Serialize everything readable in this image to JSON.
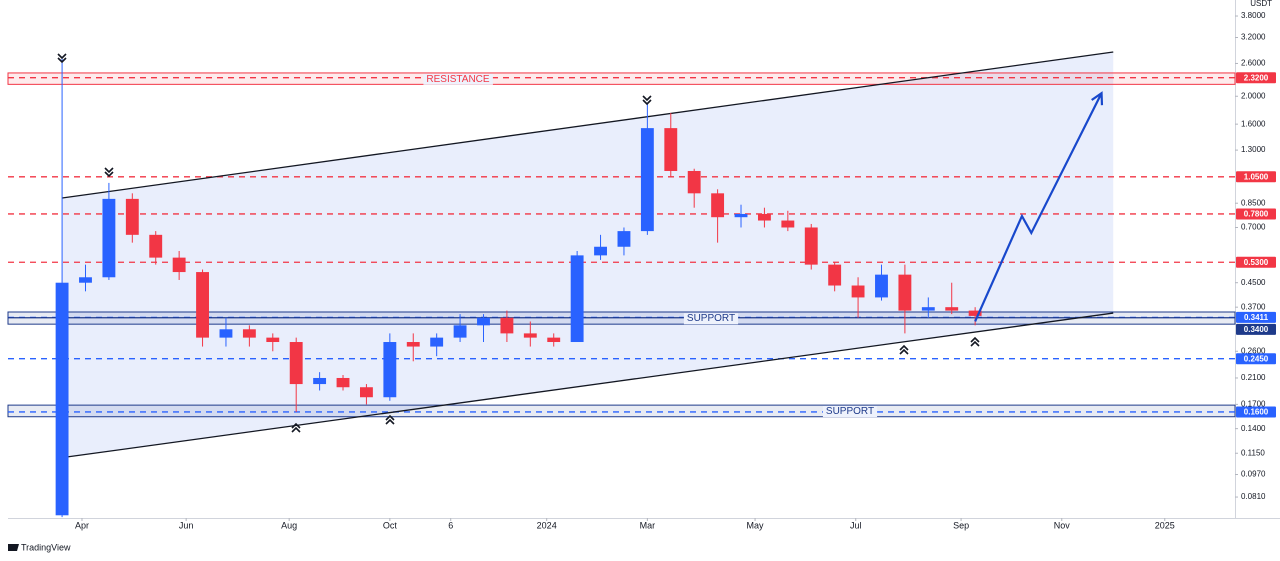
{
  "chart_data": {
    "type": "candlestick",
    "y_unit": "USDT",
    "branding": "TradingView",
    "log_scale": true,
    "up_color": "#2962ff",
    "down_color": "#f23645",
    "x": [
      0,
      1,
      2,
      3,
      4,
      5,
      6,
      7,
      8,
      9,
      10,
      11,
      12,
      13,
      14,
      15,
      16,
      17,
      18,
      19,
      20,
      21,
      22,
      23,
      24,
      25,
      26,
      27,
      28,
      29,
      30,
      31,
      32,
      33,
      34,
      35,
      36,
      37,
      38,
      39
    ],
    "open": [
      0.07,
      0.45,
      0.47,
      0.88,
      0.66,
      0.55,
      0.49,
      0.29,
      0.31,
      0.29,
      0.28,
      0.2,
      0.21,
      0.195,
      0.18,
      0.28,
      0.27,
      0.29,
      0.32,
      0.34,
      0.3,
      0.29,
      0.28,
      0.56,
      0.6,
      0.68,
      1.55,
      1.1,
      0.92,
      0.76,
      0.78,
      0.74,
      0.7,
      0.52,
      0.44,
      0.4,
      0.48,
      0.36,
      0.37,
      0.36
    ],
    "high": [
      2.7,
      0.52,
      1.0,
      0.92,
      0.68,
      0.58,
      0.5,
      0.34,
      0.32,
      0.3,
      0.29,
      0.22,
      0.215,
      0.2,
      0.3,
      0.3,
      0.3,
      0.35,
      0.35,
      0.36,
      0.33,
      0.3,
      0.58,
      0.66,
      0.7,
      1.9,
      1.75,
      1.12,
      0.95,
      0.84,
      0.82,
      0.8,
      0.72,
      0.53,
      0.47,
      0.52,
      0.52,
      0.4,
      0.45,
      0.37
    ],
    "low": [
      0.069,
      0.42,
      0.46,
      0.62,
      0.52,
      0.46,
      0.27,
      0.27,
      0.27,
      0.26,
      0.16,
      0.19,
      0.19,
      0.17,
      0.175,
      0.24,
      0.25,
      0.28,
      0.28,
      0.28,
      0.27,
      0.27,
      0.28,
      0.54,
      0.56,
      0.66,
      1.05,
      0.82,
      0.62,
      0.7,
      0.7,
      0.68,
      0.5,
      0.42,
      0.34,
      0.39,
      0.3,
      0.34,
      0.35,
      0.32
    ],
    "close": [
      0.45,
      0.47,
      0.88,
      0.66,
      0.55,
      0.49,
      0.29,
      0.31,
      0.29,
      0.28,
      0.2,
      0.21,
      0.195,
      0.18,
      0.28,
      0.27,
      0.29,
      0.32,
      0.34,
      0.3,
      0.29,
      0.28,
      0.56,
      0.6,
      0.68,
      1.55,
      1.1,
      0.92,
      0.76,
      0.78,
      0.74,
      0.7,
      0.52,
      0.44,
      0.4,
      0.48,
      0.36,
      0.37,
      0.36,
      0.345
    ],
    "xlim": [
      -2.31,
      50.1
    ],
    "xticks": [
      {
        "value": 0.85,
        "label": "Apr"
      },
      {
        "value": 5.3,
        "label": "Jun"
      },
      {
        "value": 9.7,
        "label": "Aug"
      },
      {
        "value": 14.0,
        "label": "Oct"
      },
      {
        "value": 16.6,
        "label": "6"
      },
      {
        "value": 20.7,
        "label": "2024"
      },
      {
        "value": 25.0,
        "label": "Mar"
      },
      {
        "value": 29.6,
        "label": "May"
      },
      {
        "value": 33.9,
        "label": "Jul"
      },
      {
        "value": 38.4,
        "label": "Sep"
      },
      {
        "value": 42.7,
        "label": "Nov"
      },
      {
        "value": 47.1,
        "label": "2025"
      }
    ],
    "ylim": [
      0.0685,
      4.32
    ],
    "yticks": [
      {
        "value": 3.8,
        "label": "3.8000"
      },
      {
        "value": 3.2,
        "label": "3.2000"
      },
      {
        "value": 2.6,
        "label": "2.6000"
      },
      {
        "value": 2.0,
        "label": "2.0000"
      },
      {
        "value": 1.6,
        "label": "1.6000"
      },
      {
        "value": 1.3,
        "label": "1.3000"
      },
      {
        "value": 0.85,
        "label": "0.8500"
      },
      {
        "value": 0.7,
        "label": "0.7000"
      },
      {
        "value": 0.45,
        "label": "0.4500"
      },
      {
        "value": 0.37,
        "label": "0.3700"
      },
      {
        "value": 0.26,
        "label": "0.2600"
      },
      {
        "value": 0.21,
        "label": "0.2100"
      },
      {
        "value": 0.17,
        "label": "0.1700"
      },
      {
        "value": 0.14,
        "label": "0.1400"
      },
      {
        "value": 0.115,
        "label": "0.1150"
      },
      {
        "value": 0.097,
        "label": "0.0970"
      },
      {
        "value": 0.081,
        "label": "0.0810"
      }
    ],
    "zones": [
      {
        "label": "RESISTANCE",
        "low": 2.2,
        "high": 2.41,
        "color": "#f23645"
      },
      {
        "label": "SUPPORT",
        "low": 0.323,
        "high": 0.356,
        "color": "#1e3a8a"
      },
      {
        "label": "SUPPORT",
        "low": 0.154,
        "high": 0.169,
        "color": "#1e3a8a"
      }
    ],
    "levels": [
      {
        "value": 2.32,
        "label": "2.3200",
        "color": "#f23645",
        "style": "dashed"
      },
      {
        "value": 1.05,
        "label": "1.0500",
        "color": "#f23645",
        "style": "dashed"
      },
      {
        "value": 0.78,
        "label": "0.7800",
        "color": "#f23645",
        "style": "dashed"
      },
      {
        "value": 0.53,
        "label": "0.5300",
        "color": "#f23645",
        "style": "dashed"
      },
      {
        "value": 0.3411,
        "label": "0.3411",
        "color": "#2962ff",
        "style": "dashed"
      },
      {
        "value": 0.34,
        "label": "0.3400",
        "color": "#1e3a8a",
        "style": "solid"
      },
      {
        "value": 0.245,
        "label": "0.2450",
        "color": "#2962ff",
        "style": "dashed"
      },
      {
        "value": 0.16,
        "label": "0.1600",
        "color": "#2962ff",
        "style": "dashed"
      }
    ],
    "trendlines": [
      {
        "x": [
          0,
          44.9
        ],
        "y": [
          0.886,
          2.85
        ],
        "color": "#131722"
      },
      {
        "x": [
          0,
          44.9
        ],
        "y": [
          0.111,
          0.353
        ],
        "color": "#131722"
      }
    ],
    "channel_color": "#dfe7fb",
    "projection": {
      "x": [
        39,
        41.0,
        41.4,
        44.4
      ],
      "y": [
        0.33,
        0.767,
        0.67,
        2.05
      ],
      "color": "#1848cc"
    }
  }
}
